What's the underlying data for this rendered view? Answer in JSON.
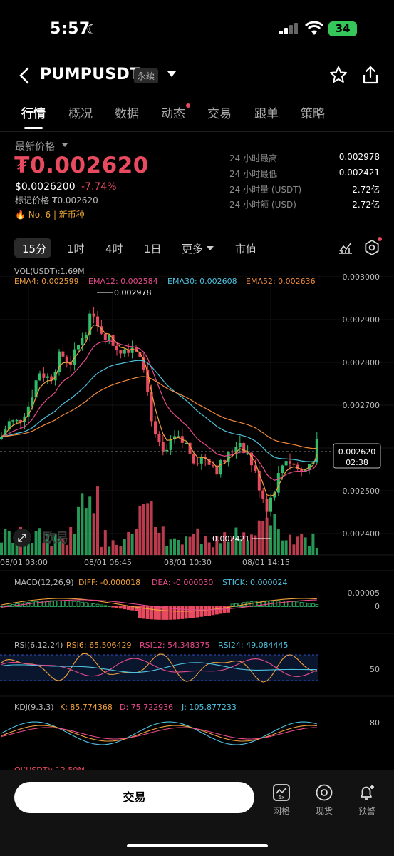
{
  "status_bar": {
    "time": "5:57",
    "moon": "☾",
    "battery": "34"
  },
  "header": {
    "title": "PUMPUSDT",
    "badge": "永续"
  },
  "tabs": [
    "行情",
    "概况",
    "数据",
    "动态",
    "交易",
    "跟单",
    "策略"
  ],
  "price": {
    "label": "最新价格",
    "last": "₮0.002620",
    "usd": "$0.0026200",
    "change": "-7.74%",
    "mark": "标记价格 ₮0.002620",
    "rank": "🔥 No. 6  |  新币种"
  },
  "stats": [
    {
      "label": "24 小时最高",
      "value": "0.002978"
    },
    {
      "label": "24 小时最低",
      "value": "0.002421"
    },
    {
      "label": "24 小时量 (USDT)",
      "value": "2.72亿"
    },
    {
      "label": "24 小时额 (USD)",
      "value": "2.72亿"
    }
  ],
  "intervals": [
    "15分",
    "1时",
    "4时",
    "1日",
    "更多",
    "市值"
  ],
  "chart": {
    "vol_label": "VOL(USDT):1.69M",
    "ema": [
      {
        "text": "EMA4: 0.002599",
        "color": "#f0a03c"
      },
      {
        "text": "EMA12: 0.002584",
        "color": "#e84a8a"
      },
      {
        "text": "EMA30: 0.002608",
        "color": "#4ec3e0"
      },
      {
        "text": "EMA52: 0.002636",
        "color": "#f08a3c"
      }
    ],
    "y_ticks": [
      "0.003000",
      "0.002900",
      "0.002800",
      "0.002700",
      "0.002600",
      "0.002500",
      "0.002400"
    ],
    "x_ticks": [
      "08/01 03:00",
      "08/01 06:45",
      "08/01 10:30",
      "08/01 14:15"
    ],
    "high_label": "0.002978",
    "low_label": "0.002421",
    "current_price": "0.002620",
    "countdown": "02:38",
    "watermark": "欧易",
    "macd": {
      "title": "MACD(12,26,9)",
      "diff": "DIFF: -0.000018",
      "dea": "DEA: -0.000030",
      "stick": "STICK: 0.000024",
      "ticks": [
        "0.00005",
        "0"
      ]
    },
    "rsi": {
      "title": "RSI(6,12,24)",
      "rsi6": "RSI6: 65.506429",
      "rsi12": "RSI12: 54.348375",
      "rsi24": "RSI24: 49.084445",
      "tick": "50"
    },
    "kdj": {
      "title": "KDJ(9,3,3)",
      "k": "K: 85.774368",
      "d": "D: 75.722936",
      "j": "J: 105.877233",
      "tick": "80"
    },
    "oi_label": "OI(USDT): 12.50M"
  },
  "chart_data": {
    "type": "candlestick",
    "ylim": [
      0.0024,
      0.003
    ],
    "high": 0.002978,
    "low": 0.002421,
    "last": 0.00262
  },
  "bottom": {
    "trade": "交易",
    "items": [
      {
        "label": "网格",
        "icon": "grid-bot-icon"
      },
      {
        "label": "现货",
        "icon": "spot-icon"
      },
      {
        "label": "预警",
        "icon": "alert-bell-icon"
      }
    ]
  },
  "colors": {
    "up": "#2fbd6a",
    "down": "#e84a5f",
    "bg": "#000000"
  }
}
